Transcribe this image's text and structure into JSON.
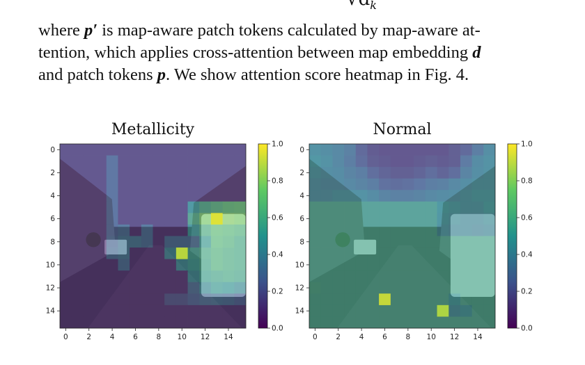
{
  "equation_fragment": "√d",
  "equation_subscript": "k",
  "paragraph": {
    "l1_a": "where ",
    "l1_sym": "p′",
    "l1_b": " is map-aware patch tokens calculated by map-aware at-",
    "l2_a": "tention, which applies cross-attention between map embedding ",
    "l2_sym": "d",
    "l3_a": "and patch tokens ",
    "l3_sym": "p",
    "l3_b": ". We show attention score heatmap in Fig. 4."
  },
  "colors": {
    "cmap": [
      "#440154",
      "#3b528b",
      "#21918c",
      "#5ec962",
      "#fde725"
    ],
    "overlay_opacity": 0.55,
    "scene_sky": "#8fa7c4",
    "scene_buildings": "#6c6f74",
    "scene_road": "#4c4a4f",
    "van": "#e6eaed"
  },
  "chart_data": [
    {
      "type": "heatmap",
      "title": "Metallicity",
      "x_ticks": [
        "0",
        "2",
        "4",
        "6",
        "8",
        "10",
        "12",
        "14"
      ],
      "y_ticks": [
        "0",
        "2",
        "4",
        "6",
        "8",
        "10",
        "12",
        "14"
      ],
      "grid_size": [
        16,
        16
      ],
      "background_value": 0.08,
      "colorbar": {
        "range": [
          0.0,
          1.0
        ],
        "ticks": [
          "0.0",
          "0.2",
          "0.4",
          "0.6",
          "0.8",
          "1.0"
        ]
      },
      "cells": [
        [
          1,
          4,
          0.25
        ],
        [
          2,
          4,
          0.25
        ],
        [
          3,
          4,
          0.25
        ],
        [
          4,
          4,
          0.25
        ],
        [
          5,
          4,
          0.25
        ],
        [
          6,
          4,
          0.25
        ],
        [
          7,
          4,
          0.25
        ],
        [
          8,
          4,
          0.28
        ],
        [
          9,
          4,
          0.3
        ],
        [
          7,
          5,
          0.3
        ],
        [
          8,
          5,
          0.35
        ],
        [
          9,
          5,
          0.35
        ],
        [
          10,
          5,
          0.3
        ],
        [
          8,
          9,
          0.3
        ],
        [
          8,
          10,
          0.3
        ],
        [
          8,
          11,
          0.3
        ],
        [
          8,
          6,
          0.35
        ],
        [
          8,
          7,
          0.3
        ],
        [
          7,
          7,
          0.3
        ],
        [
          9,
          9,
          0.42
        ],
        [
          9,
          10,
          0.45
        ],
        [
          5,
          11,
          0.5
        ],
        [
          5,
          12,
          0.6
        ],
        [
          5,
          13,
          0.65
        ],
        [
          5,
          14,
          0.7
        ],
        [
          5,
          15,
          0.72
        ],
        [
          6,
          11,
          0.62
        ],
        [
          6,
          12,
          0.78
        ],
        [
          6,
          13,
          0.95
        ],
        [
          6,
          14,
          0.8
        ],
        [
          6,
          15,
          0.78
        ],
        [
          7,
          11,
          0.5
        ],
        [
          7,
          12,
          0.62
        ],
        [
          7,
          13,
          0.7
        ],
        [
          7,
          14,
          0.68
        ],
        [
          7,
          15,
          0.65
        ],
        [
          8,
          12,
          0.52
        ],
        [
          8,
          13,
          0.68
        ],
        [
          8,
          14,
          0.65
        ],
        [
          8,
          15,
          0.6
        ],
        [
          9,
          10,
          0.9
        ],
        [
          9,
          11,
          0.55
        ],
        [
          9,
          12,
          0.6
        ],
        [
          9,
          13,
          0.65
        ],
        [
          9,
          14,
          0.62
        ],
        [
          9,
          15,
          0.6
        ],
        [
          10,
          10,
          0.45
        ],
        [
          10,
          11,
          0.52
        ],
        [
          10,
          12,
          0.58
        ],
        [
          10,
          13,
          0.65
        ],
        [
          10,
          14,
          0.62
        ],
        [
          10,
          15,
          0.6
        ],
        [
          11,
          11,
          0.45
        ],
        [
          11,
          12,
          0.55
        ],
        [
          11,
          13,
          0.58
        ],
        [
          11,
          14,
          0.6
        ],
        [
          11,
          15,
          0.58
        ],
        [
          12,
          11,
          0.3
        ],
        [
          12,
          12,
          0.45
        ],
        [
          12,
          13,
          0.52
        ],
        [
          12,
          14,
          0.5
        ],
        [
          12,
          15,
          0.45
        ],
        [
          13,
          9,
          0.2
        ],
        [
          13,
          10,
          0.2
        ],
        [
          13,
          11,
          0.25
        ],
        [
          13,
          12,
          0.3
        ],
        [
          13,
          13,
          0.32
        ],
        [
          13,
          14,
          0.3
        ],
        [
          13,
          15,
          0.25
        ]
      ]
    },
    {
      "type": "heatmap",
      "title": "Normal",
      "x_ticks": [
        "0",
        "2",
        "4",
        "6",
        "8",
        "10",
        "12",
        "14"
      ],
      "y_ticks": [
        "0",
        "2",
        "4",
        "6",
        "8",
        "10",
        "12",
        "14"
      ],
      "grid_size": [
        16,
        16
      ],
      "background_value": 0.58,
      "colorbar": {
        "range": [
          0.0,
          1.0
        ],
        "ticks": [
          "0.0",
          "0.2",
          "0.4",
          "0.6",
          "0.8",
          "1.0"
        ]
      },
      "cells": [
        [
          0,
          0,
          0.45
        ],
        [
          0,
          1,
          0.42
        ],
        [
          0,
          2,
          0.38
        ],
        [
          0,
          3,
          0.32
        ],
        [
          0,
          4,
          0.18
        ],
        [
          0,
          5,
          0.1
        ],
        [
          0,
          6,
          0.08
        ],
        [
          0,
          7,
          0.08
        ],
        [
          0,
          8,
          0.08
        ],
        [
          0,
          9,
          0.08
        ],
        [
          0,
          10,
          0.08
        ],
        [
          0,
          11,
          0.08
        ],
        [
          0,
          12,
          0.12
        ],
        [
          0,
          13,
          0.18
        ],
        [
          0,
          14,
          0.3
        ],
        [
          0,
          15,
          0.42
        ],
        [
          1,
          0,
          0.48
        ],
        [
          1,
          1,
          0.45
        ],
        [
          1,
          2,
          0.38
        ],
        [
          1,
          3,
          0.3
        ],
        [
          1,
          4,
          0.2
        ],
        [
          1,
          5,
          0.12
        ],
        [
          1,
          6,
          0.1
        ],
        [
          1,
          7,
          0.08
        ],
        [
          1,
          8,
          0.08
        ],
        [
          1,
          9,
          0.1
        ],
        [
          1,
          10,
          0.12
        ],
        [
          1,
          11,
          0.1
        ],
        [
          1,
          12,
          0.12
        ],
        [
          1,
          13,
          0.28
        ],
        [
          1,
          14,
          0.4
        ],
        [
          1,
          15,
          0.45
        ],
        [
          2,
          0,
          0.45
        ],
        [
          2,
          1,
          0.42
        ],
        [
          2,
          2,
          0.4
        ],
        [
          2,
          3,
          0.35
        ],
        [
          2,
          4,
          0.3
        ],
        [
          2,
          5,
          0.2
        ],
        [
          2,
          6,
          0.15
        ],
        [
          2,
          7,
          0.12
        ],
        [
          2,
          8,
          0.12
        ],
        [
          2,
          9,
          0.15
        ],
        [
          2,
          10,
          0.2
        ],
        [
          2,
          11,
          0.15
        ],
        [
          2,
          12,
          0.2
        ],
        [
          2,
          13,
          0.35
        ],
        [
          2,
          14,
          0.42
        ],
        [
          2,
          15,
          0.45
        ],
        [
          3,
          0,
          0.42
        ],
        [
          3,
          1,
          0.4
        ],
        [
          3,
          2,
          0.4
        ],
        [
          3,
          3,
          0.38
        ],
        [
          3,
          4,
          0.35
        ],
        [
          3,
          5,
          0.3
        ],
        [
          3,
          6,
          0.22
        ],
        [
          3,
          7,
          0.2
        ],
        [
          3,
          8,
          0.22
        ],
        [
          3,
          9,
          0.25
        ],
        [
          3,
          10,
          0.3
        ],
        [
          3,
          11,
          0.32
        ],
        [
          3,
          12,
          0.38
        ],
        [
          3,
          13,
          0.42
        ],
        [
          3,
          14,
          0.45
        ],
        [
          3,
          15,
          0.45
        ],
        [
          4,
          0,
          0.42
        ],
        [
          4,
          1,
          0.42
        ],
        [
          4,
          2,
          0.45
        ],
        [
          4,
          3,
          0.45
        ],
        [
          4,
          4,
          0.45
        ],
        [
          4,
          5,
          0.4
        ],
        [
          4,
          6,
          0.35
        ],
        [
          4,
          7,
          0.32
        ],
        [
          4,
          8,
          0.32
        ],
        [
          4,
          9,
          0.35
        ],
        [
          4,
          10,
          0.38
        ],
        [
          4,
          11,
          0.4
        ],
        [
          4,
          12,
          0.42
        ],
        [
          4,
          13,
          0.45
        ],
        [
          4,
          14,
          0.48
        ],
        [
          4,
          15,
          0.48
        ],
        [
          5,
          11,
          0.5
        ],
        [
          5,
          12,
          0.48
        ],
        [
          5,
          13,
          0.45
        ],
        [
          5,
          14,
          0.45
        ],
        [
          5,
          15,
          0.5
        ],
        [
          6,
          11,
          0.48
        ],
        [
          6,
          12,
          0.45
        ],
        [
          6,
          13,
          0.42
        ],
        [
          6,
          14,
          0.42
        ],
        [
          6,
          15,
          0.45
        ],
        [
          7,
          11,
          0.45
        ],
        [
          7,
          12,
          0.42
        ],
        [
          7,
          13,
          0.42
        ],
        [
          7,
          14,
          0.4
        ],
        [
          7,
          15,
          0.42
        ],
        [
          13,
          6,
          0.92
        ],
        [
          14,
          11,
          0.88
        ],
        [
          12,
          0,
          0.6
        ],
        [
          13,
          12,
          0.5
        ],
        [
          14,
          12,
          0.45
        ],
        [
          14,
          13,
          0.48
        ]
      ]
    }
  ]
}
